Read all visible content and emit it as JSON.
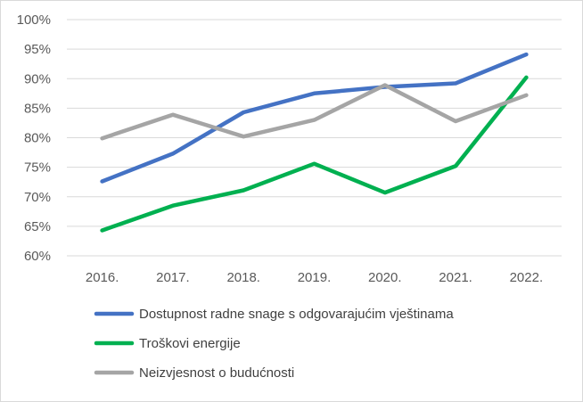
{
  "chart_data": {
    "type": "line",
    "categories": [
      "2016.",
      "2017.",
      "2018.",
      "2019.",
      "2020.",
      "2021.",
      "2022."
    ],
    "y_ticks": [
      "60%",
      "65%",
      "70%",
      "75%",
      "80%",
      "85%",
      "90%",
      "95%",
      "100%"
    ],
    "ylim": [
      60,
      100
    ],
    "grid": true,
    "legend_position": "bottom",
    "series": [
      {
        "name": "Dostupnost radne snage s odgovarajućim vještinama",
        "color": "#4472C4",
        "values": [
          72.6,
          77.3,
          84.3,
          87.5,
          88.6,
          89.2,
          94.1
        ]
      },
      {
        "name": "Troškovi energije",
        "color": "#00B050",
        "values": [
          64.3,
          68.5,
          71.1,
          75.6,
          70.7,
          75.2,
          90.2
        ]
      },
      {
        "name": "Neizvjesnost o budućnosti",
        "color": "#A5A5A5",
        "values": [
          79.9,
          83.9,
          80.2,
          83.0,
          88.9,
          82.8,
          87.2
        ]
      }
    ]
  }
}
